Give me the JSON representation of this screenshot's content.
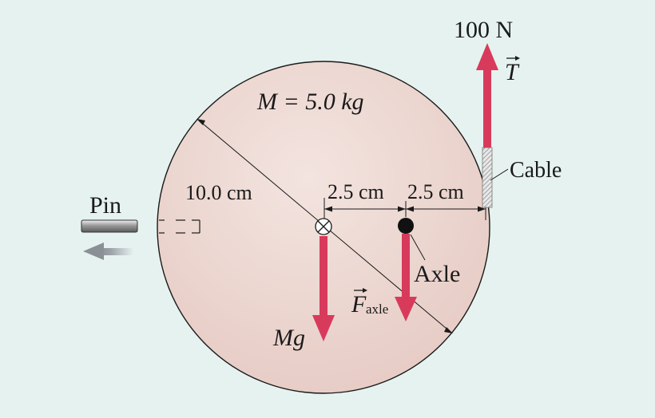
{
  "labels": {
    "mass": "M = 5.0 kg",
    "diameter": "10.0 cm",
    "dist_left": "2.5 cm",
    "dist_right": "2.5 cm",
    "tension_value": "100 N",
    "tension_symbol": "T",
    "cable": "Cable",
    "pin": "Pin",
    "axle": "Axle",
    "weight": "Mg",
    "axle_force_symbol": "F",
    "axle_force_subscript": "axle"
  },
  "colors": {
    "background": "#e6f2ef",
    "disk_fill": "#ecd6d0",
    "force_arrow": "#d83a5c",
    "pin_arrow": "#9aa0a6"
  }
}
